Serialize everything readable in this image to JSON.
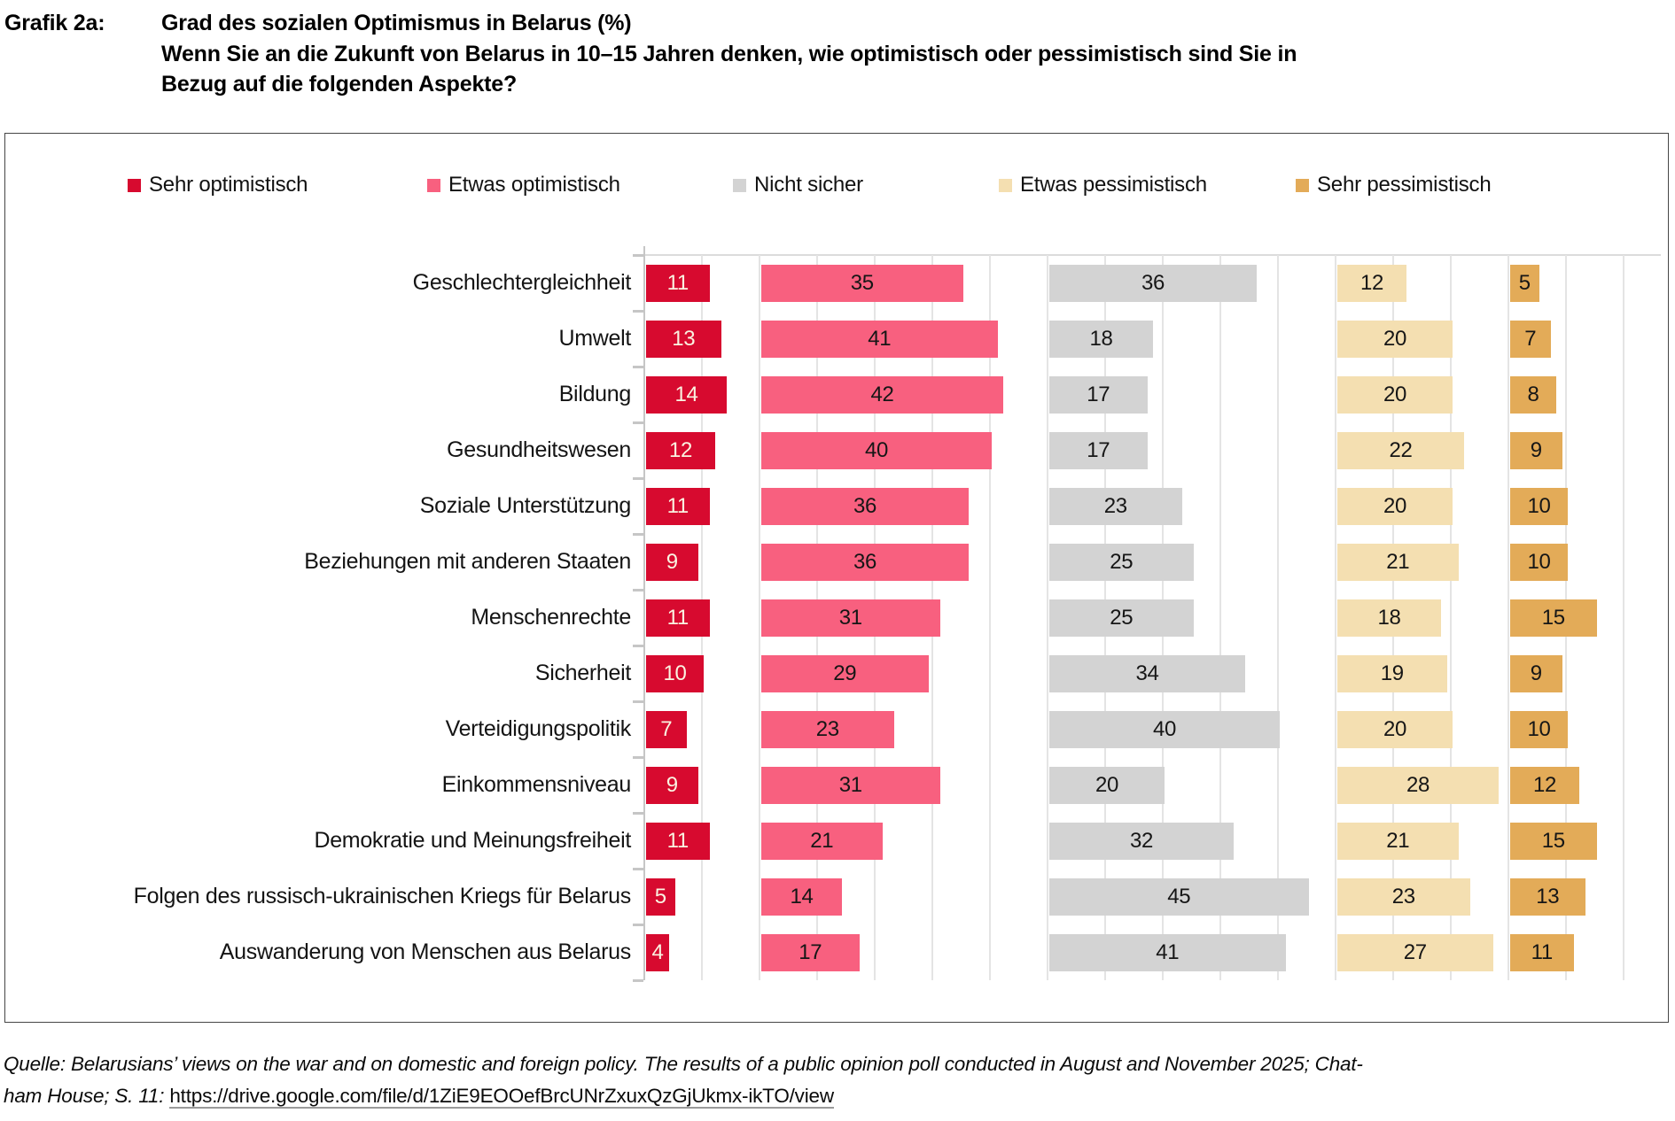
{
  "header": {
    "label": "Grafik 2a:",
    "title": "Grad des sozialen Optimismus in Belarus (%)",
    "subtitle_line1": "Wenn Sie an die Zukunft von Belarus in 10–15 Jahren denken, wie optimistisch oder pessimistisch sind Sie in",
    "subtitle_line2": "Bezug auf die folgenden Aspekte?"
  },
  "chart_data": {
    "type": "bar",
    "orientation": "horizontal",
    "value_unit": "%",
    "legend_position": "top",
    "grid": true,
    "gridline_step_pct": 10,
    "axis_total_pct": 180,
    "panel_offsets_pct": [
      0,
      20,
      70,
      120,
      150
    ],
    "panel_widths_pct": [
      20,
      50,
      50,
      30,
      30
    ],
    "categories": [
      "Geschlechtergleichheit",
      "Umwelt",
      "Bildung",
      "Gesundheitswesen",
      "Soziale Unterstützung",
      "Beziehungen mit anderen Staaten",
      "Menschenrechte",
      "Sicherheit",
      "Verteidigungspolitik",
      "Einkommensniveau",
      "Demokratie und Meinungsfreiheit",
      "Folgen des russisch-ukrainischen Kriegs für Belarus",
      "Auswanderung von Menschen aus Belarus"
    ],
    "series": [
      {
        "name": "Sehr optimistisch",
        "color": "#D70A2F",
        "label_color": "#FAF3E1",
        "values": [
          11,
          13,
          14,
          12,
          11,
          9,
          11,
          10,
          7,
          9,
          11,
          5,
          4
        ]
      },
      {
        "name": "Etwas optimistisch",
        "color": "#F8607F",
        "label_color": "#161616",
        "values": [
          35,
          41,
          42,
          40,
          36,
          36,
          31,
          29,
          23,
          31,
          21,
          14,
          17
        ]
      },
      {
        "name": "Nicht sicher",
        "color": "#D3D3D3",
        "label_color": "#161616",
        "values": [
          36,
          18,
          17,
          17,
          23,
          25,
          25,
          34,
          40,
          20,
          32,
          45,
          41
        ]
      },
      {
        "name": "Etwas pessimistisch",
        "color": "#F4DFB1",
        "label_color": "#161616",
        "values": [
          12,
          20,
          20,
          22,
          20,
          21,
          18,
          19,
          20,
          28,
          21,
          23,
          27
        ]
      },
      {
        "name": "Sehr pessimistisch",
        "color": "#E3AB58",
        "label_color": "#161616",
        "values": [
          5,
          7,
          8,
          9,
          10,
          10,
          15,
          9,
          10,
          12,
          15,
          13,
          11
        ]
      }
    ]
  },
  "footer": {
    "line1": "Quelle: Belarusians’ views on the war and on domestic and foreign policy. The results of a public opinion poll conducted in August and November 2025; Chat-",
    "line2_prefix": "ham House; S. 11: ",
    "line2_link": "https://drive.google.com/file/d/1ZiE9EOOefBrcUNrZxuxQzGjUkmx-ikTO/view"
  }
}
